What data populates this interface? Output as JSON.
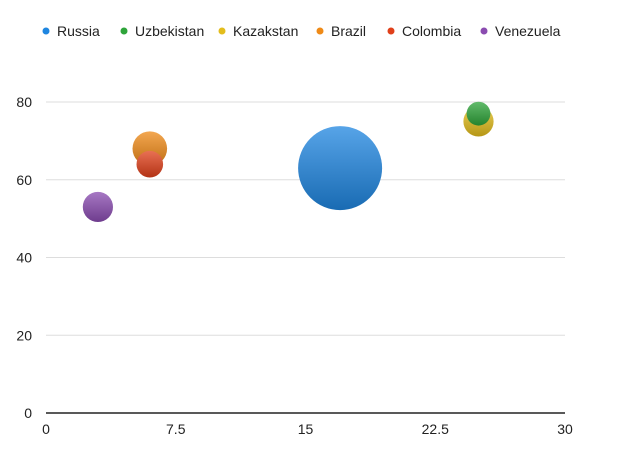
{
  "chart_data": {
    "type": "scatter",
    "subtype": "bubble",
    "title": "",
    "xlabel": "",
    "ylabel": "",
    "xlim": [
      0,
      30
    ],
    "ylim": [
      0,
      80
    ],
    "x_ticks": [
      "0",
      "7.5",
      "15",
      "22.5",
      "30"
    ],
    "y_ticks": [
      "0",
      "20",
      "40",
      "60",
      "80"
    ],
    "grid": "horizontal",
    "legend_position": "top",
    "series": [
      {
        "name": "Russia",
        "color": "#1f86e0",
        "x": 17,
        "y": 63,
        "size": 100
      },
      {
        "name": "Uzbekistan",
        "color": "#2ea43a",
        "x": 25,
        "y": 77,
        "size": 8
      },
      {
        "name": "Kazakstan",
        "color": "#e3bd1c",
        "x": 25,
        "y": 75,
        "size": 13
      },
      {
        "name": "Brazil",
        "color": "#ef8a17",
        "x": 6,
        "y": 68,
        "size": 17
      },
      {
        "name": "Colombia",
        "color": "#e0401a",
        "x": 6,
        "y": 64,
        "size": 10
      },
      {
        "name": "Venezuela",
        "color": "#8a4bb0",
        "x": 3,
        "y": 53,
        "size": 13
      }
    ]
  }
}
